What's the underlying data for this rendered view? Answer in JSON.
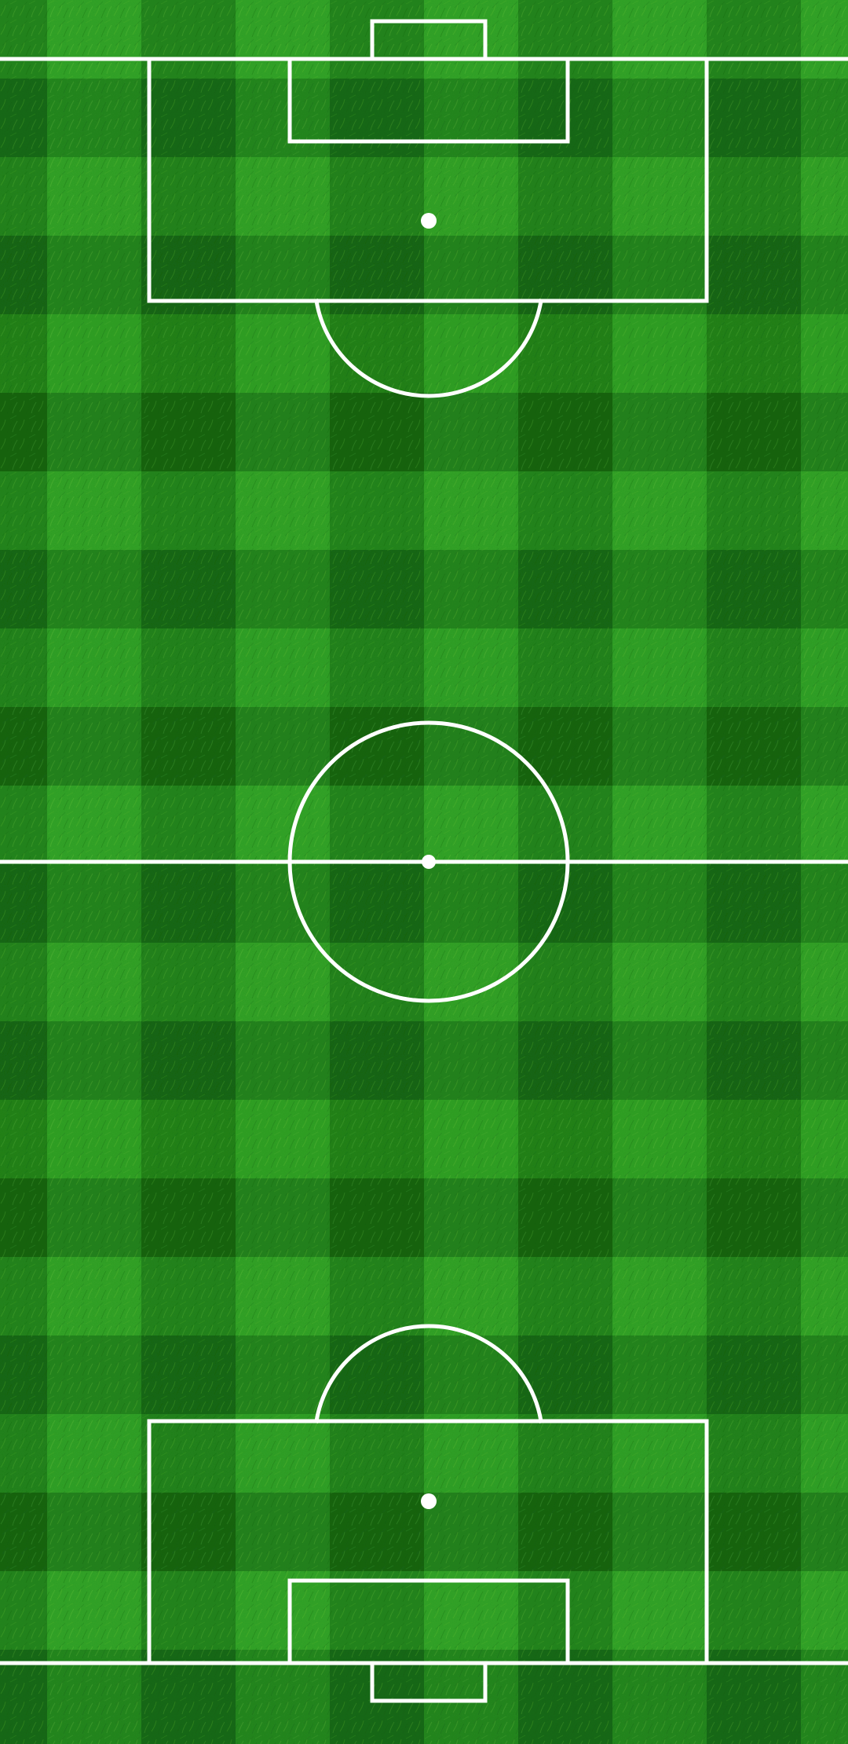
{
  "pitch": {
    "type": "football-pitch",
    "orientation": "vertical",
    "texture": "grass",
    "pattern": "checkerboard-mowing",
    "line_color": "#ffffff",
    "grass_colors": {
      "light": "#2f9e25",
      "mid": "#23841d",
      "dark": "#176a14",
      "highlight": "#7fcf3d"
    },
    "visible_features": [
      "top-goal",
      "top-goal-area",
      "top-penalty-area",
      "top-penalty-spot",
      "top-penalty-arc",
      "halfway-line",
      "center-circle",
      "center-spot",
      "bottom-penalty-arc",
      "bottom-penalty-area",
      "bottom-penalty-spot",
      "bottom-goal-area",
      "bottom-goal"
    ]
  }
}
